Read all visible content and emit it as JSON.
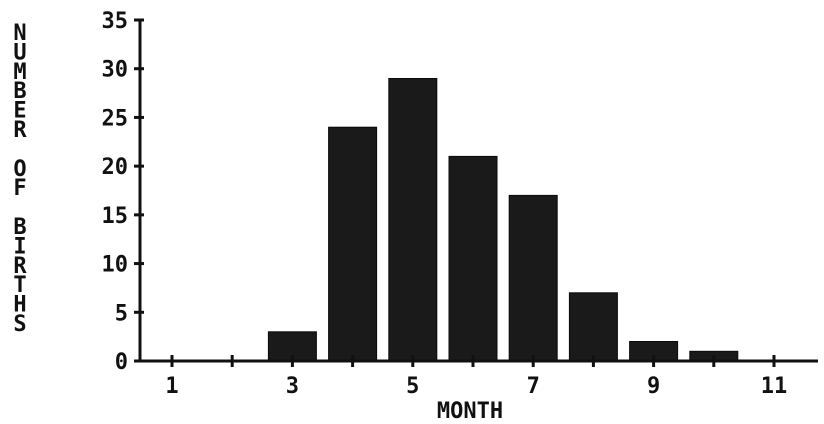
{
  "chart_data": {
    "type": "bar",
    "xlabel": "MONTH",
    "ylabel": "NUMBER OF BIRTHS",
    "x": [
      3,
      4,
      5,
      6,
      7,
      8,
      9,
      10
    ],
    "values": [
      3,
      24,
      29,
      21,
      17,
      7,
      2,
      1
    ],
    "xlim": [
      0.5,
      11.5
    ],
    "ylim": [
      0,
      35
    ],
    "x_tick_labels": [
      "1",
      "3",
      "5",
      "7",
      "9",
      "11"
    ],
    "x_tick_values": [
      1,
      3,
      5,
      7,
      9,
      11
    ],
    "x_minor_ticks": [
      1,
      2,
      3,
      4,
      5,
      6,
      7,
      8,
      9,
      10,
      11
    ],
    "y_tick_labels": [
      "0",
      "5",
      "10",
      "15",
      "20",
      "25",
      "30",
      "35"
    ],
    "y_tick_values": [
      0,
      5,
      10,
      15,
      20,
      25,
      30,
      35
    ],
    "grid": false,
    "legend": "none",
    "bar_color": "#1a1a1a"
  }
}
